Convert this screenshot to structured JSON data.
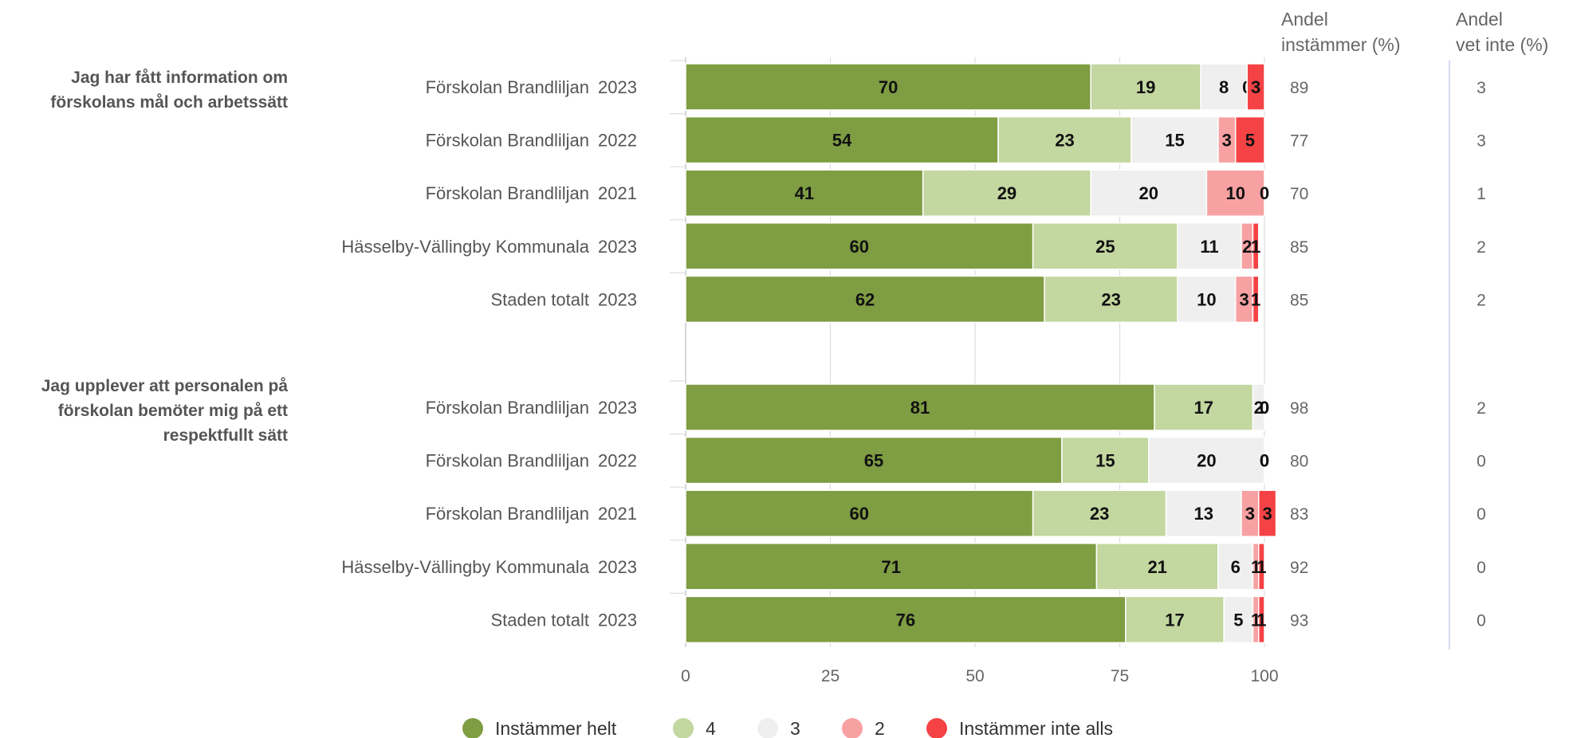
{
  "chart_data": {
    "type": "bar",
    "stacked": true,
    "orientation": "horizontal",
    "xlim": [
      0,
      100
    ],
    "x_ticks": [
      "0",
      "25",
      "50",
      "75",
      "100"
    ],
    "series": [
      {
        "name": "Instämmer helt",
        "color": "#7f9d43"
      },
      {
        "name": "4",
        "color": "#c3d7a0"
      },
      {
        "name": "3",
        "color": "#efefef"
      },
      {
        "name": "2",
        "color": "#f7a1a3"
      },
      {
        "name": "Instämmer inte alls",
        "color": "#f54245"
      }
    ],
    "column_headers": {
      "agree_line1": "Andel",
      "agree_line2": "instämmer (%)",
      "dontknow_line1": "Andel",
      "dontknow_line2": "vet inte (%)"
    },
    "groups": [
      {
        "question": [
          "Jag har fått information om",
          "förskolans mål och arbetssätt"
        ],
        "rows": [
          {
            "name": "Förskolan Brandliljan",
            "year": "2023",
            "values": [
              70,
              19,
              8,
              0,
              3
            ],
            "agree": "89",
            "dontknow": "3"
          },
          {
            "name": "Förskolan Brandliljan",
            "year": "2022",
            "values": [
              54,
              23,
              15,
              3,
              5
            ],
            "agree": "77",
            "dontknow": "3"
          },
          {
            "name": "Förskolan Brandliljan",
            "year": "2021",
            "values": [
              41,
              29,
              20,
              10,
              0
            ],
            "agree": "70",
            "dontknow": "1"
          },
          {
            "name": "Hässelby-Vällingby Kommunala",
            "year": "2023",
            "values": [
              60,
              25,
              11,
              2,
              1
            ],
            "agree": "85",
            "dontknow": "2"
          },
          {
            "name": "Staden totalt",
            "year": "2023",
            "values": [
              62,
              23,
              10,
              3,
              1
            ],
            "agree": "85",
            "dontknow": "2"
          }
        ]
      },
      {
        "question": [
          "Jag upplever att personalen på",
          "förskolan bemöter mig på ett",
          "respektfullt sätt"
        ],
        "rows": [
          {
            "name": "Förskolan Brandliljan",
            "year": "2023",
            "values": [
              81,
              17,
              2,
              0,
              0
            ],
            "agree": "98",
            "dontknow": "2"
          },
          {
            "name": "Förskolan Brandliljan",
            "year": "2022",
            "values": [
              65,
              15,
              20,
              0,
              0
            ],
            "agree": "80",
            "dontknow": "0"
          },
          {
            "name": "Förskolan Brandliljan",
            "year": "2021",
            "values": [
              60,
              23,
              13,
              3,
              3
            ],
            "agree": "83",
            "dontknow": "0"
          },
          {
            "name": "Hässelby-Vällingby Kommunala",
            "year": "2023",
            "values": [
              71,
              21,
              6,
              1,
              1
            ],
            "agree": "92",
            "dontknow": "0"
          },
          {
            "name": "Staden totalt",
            "year": "2023",
            "values": [
              76,
              17,
              5,
              1,
              1
            ],
            "agree": "93",
            "dontknow": "0"
          }
        ]
      }
    ]
  }
}
